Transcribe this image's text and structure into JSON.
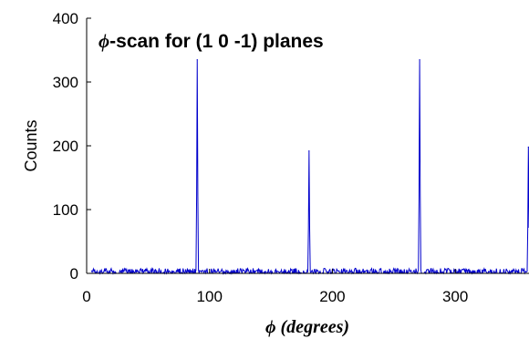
{
  "chart_data": {
    "type": "line",
    "title_symbol": "ϕ",
    "title": "-scan for (1 0 -1) planes",
    "xlabel": "ϕ (degrees)",
    "ylabel": "Counts",
    "xlim": [
      0,
      360
    ],
    "ylim": [
      0,
      400
    ],
    "x_ticks": [
      0,
      100,
      200,
      300
    ],
    "y_ticks": [
      0,
      100,
      200,
      300,
      400
    ],
    "grid": false,
    "line_color": "#0000cc",
    "baseline_noise_max": 8,
    "peaks": [
      {
        "x": 90,
        "y": 335
      },
      {
        "x": 181,
        "y": 192
      },
      {
        "x": 271,
        "y": 335
      },
      {
        "x": 359.5,
        "y": 198
      }
    ]
  }
}
